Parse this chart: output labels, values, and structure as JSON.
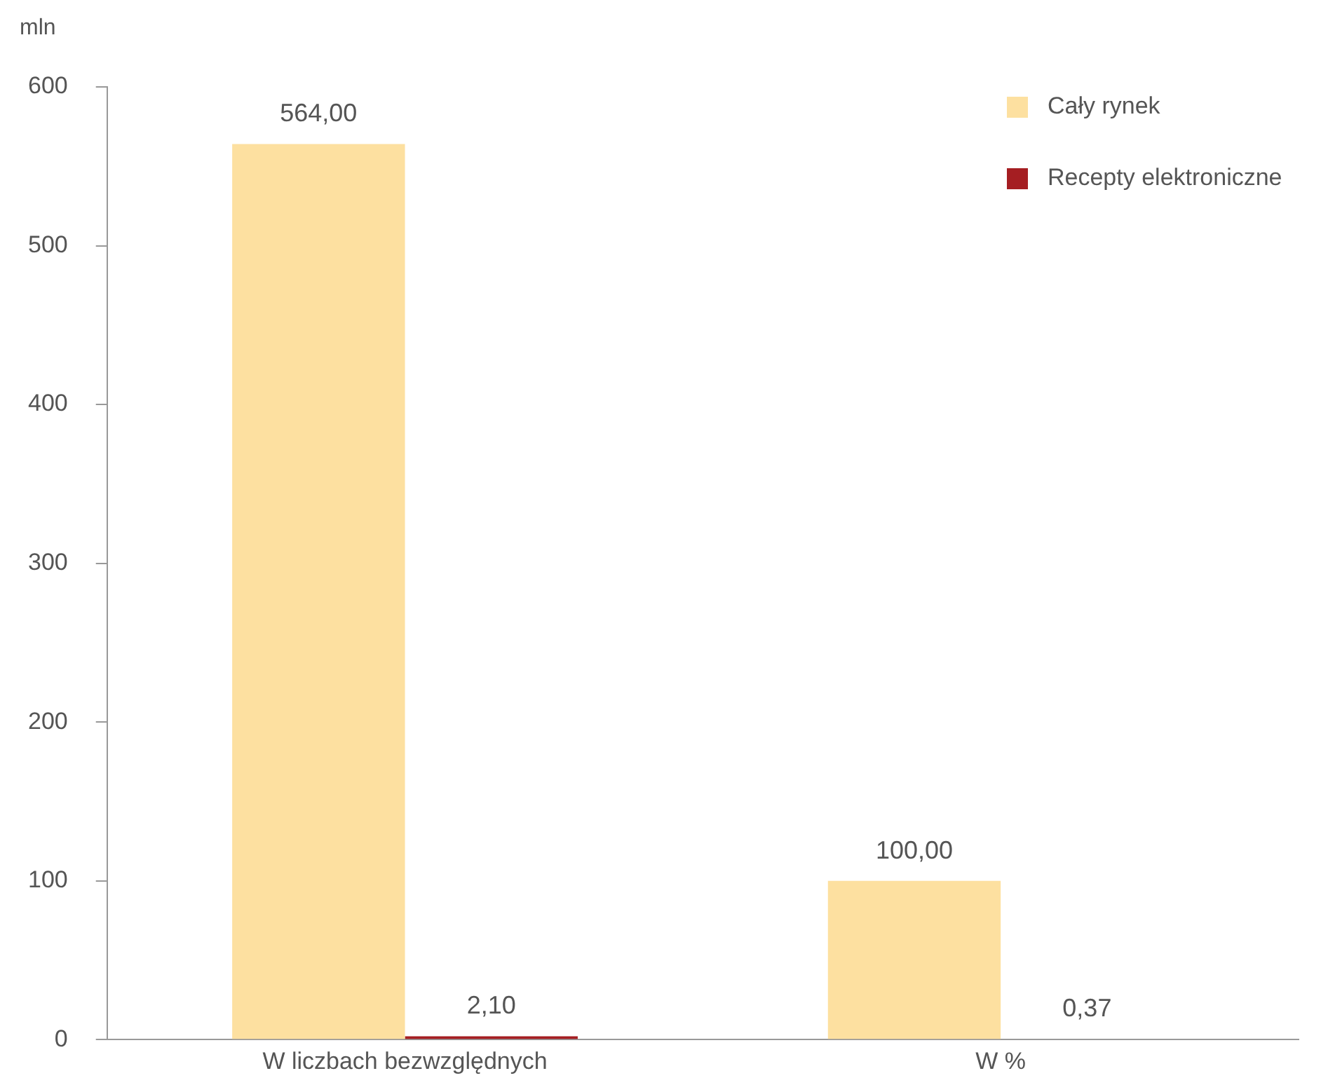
{
  "chart_data": {
    "type": "bar",
    "ylabel": "mln",
    "categories": [
      "W liczbach bezwzględnych",
      "W %"
    ],
    "series": [
      {
        "name": "Cały rynek",
        "color": "#fde0a0",
        "values": [
          564,
          100
        ],
        "value_labels": [
          "564,00",
          "100,00"
        ]
      },
      {
        "name": "Recepty elektroniczne",
        "color": "#a51e22",
        "values": [
          2.1,
          0.37
        ],
        "value_labels": [
          "2,10",
          "0,37"
        ]
      }
    ],
    "ylim": [
      0,
      600
    ],
    "yticks": [
      0,
      100,
      200,
      300,
      400,
      500,
      600
    ],
    "grid": false,
    "legend": "top right"
  }
}
